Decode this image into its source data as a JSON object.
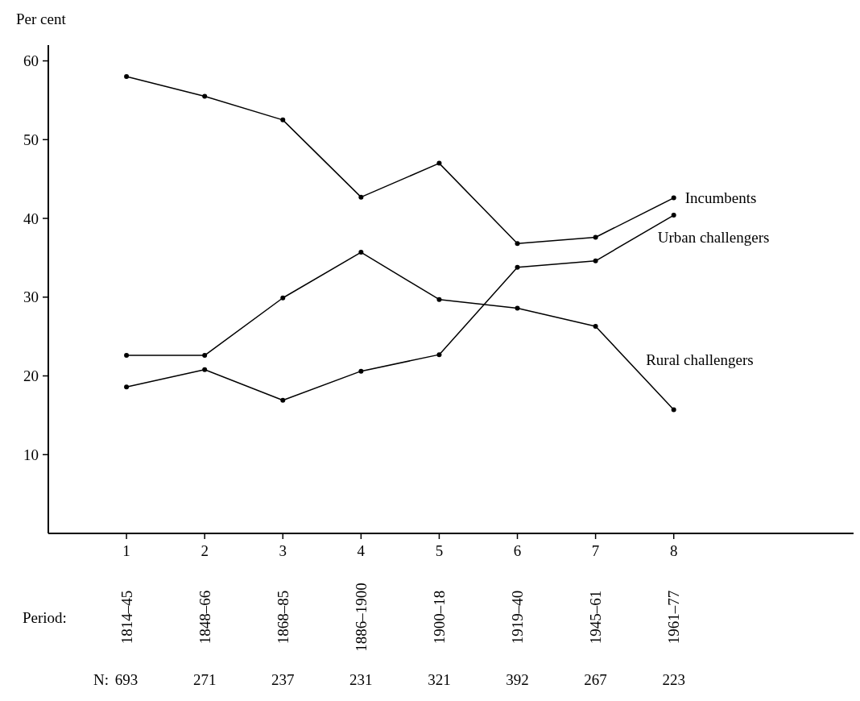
{
  "chart_data": {
    "type": "line",
    "ylabel": "Per cent",
    "x": [
      1,
      2,
      3,
      4,
      5,
      6,
      7,
      8
    ],
    "xlim": [
      0,
      10.3
    ],
    "xticks": [
      1,
      2,
      3,
      4,
      5,
      6,
      7,
      8
    ],
    "ylim": [
      0,
      62
    ],
    "yticks": [
      10,
      20,
      30,
      40,
      50,
      60
    ],
    "grid": false,
    "legend": false,
    "marker": "circle",
    "line_style": "solid",
    "series": [
      {
        "name": "Incumbents",
        "color": "#000000",
        "values": [
          58.0,
          55.5,
          52.5,
          42.7,
          47.0,
          36.8,
          37.6,
          42.6
        ]
      },
      {
        "name": "Urban challengers",
        "color": "#000000",
        "values": [
          18.6,
          20.8,
          16.9,
          20.6,
          22.7,
          33.8,
          34.6,
          40.4
        ]
      },
      {
        "name": "Rural challengers",
        "color": "#000000",
        "values": [
          22.6,
          22.6,
          29.9,
          35.7,
          29.7,
          28.6,
          26.3,
          15.7
        ]
      }
    ],
    "annotations": [
      "Period:",
      "1814–45",
      "1848–66",
      "1868–85",
      "1886–1900",
      "1900–18",
      "1919–40",
      "1945–61",
      "1961–77",
      "N:",
      "693",
      "271",
      "237",
      "231",
      "321",
      "392",
      "267",
      "223"
    ]
  }
}
